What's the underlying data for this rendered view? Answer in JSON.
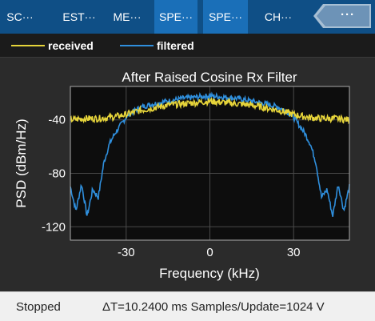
{
  "tabs": [
    {
      "label": "SC···",
      "active": false
    },
    {
      "label": "EST···",
      "active": false
    },
    {
      "label": "ME···",
      "active": false
    },
    {
      "label": "SPE···",
      "active": true
    },
    {
      "label": "SPE···",
      "active": true
    },
    {
      "label": "CH···",
      "active": false
    }
  ],
  "more_tab": {
    "label": "···"
  },
  "colors": {
    "received": "#e6d43a",
    "filtered": "#2f8fdd",
    "axes_bg": "#0d0d0d",
    "grid": "#4a4a4a"
  },
  "legend": {
    "received": "received",
    "filtered": "filtered"
  },
  "chart_data": {
    "type": "line",
    "title": "After Raised Cosine Rx Filter",
    "xlabel": "Frequency (kHz)",
    "ylabel": "PSD (dBm/Hz)",
    "xlim": [
      -50,
      50
    ],
    "ylim": [
      -130,
      -15
    ],
    "xticks": [
      -30,
      0,
      30
    ],
    "yticks": [
      -40,
      -80,
      -120
    ],
    "xtick_labels": [
      "-30",
      "0",
      "30"
    ],
    "ytick_labels": [
      "-40",
      "-80",
      "-120"
    ],
    "grid": true,
    "legend_position": "top",
    "series": [
      {
        "name": "received",
        "x": [
          -50,
          -45,
          -40,
          -35,
          -30,
          -25,
          -20,
          -15,
          -10,
          -5,
          0,
          5,
          10,
          15,
          20,
          25,
          30,
          35,
          40,
          45,
          50
        ],
        "y": [
          -40,
          -39,
          -39,
          -38,
          -36,
          -33,
          -31,
          -29,
          -28,
          -27,
          -26,
          -27,
          -28,
          -29,
          -31,
          -33,
          -36,
          -38,
          -39,
          -39,
          -40
        ]
      },
      {
        "name": "filtered",
        "x": [
          -50,
          -48,
          -46,
          -44,
          -42,
          -40,
          -38,
          -36,
          -34,
          -32,
          -30,
          -27,
          -24,
          -20,
          -15,
          -10,
          -5,
          0,
          5,
          10,
          15,
          20,
          24,
          27,
          30,
          32,
          34,
          36,
          38,
          40,
          42,
          44,
          46,
          48,
          50
        ],
        "y": [
          -90,
          -108,
          -88,
          -112,
          -92,
          -98,
          -72,
          -58,
          -50,
          -44,
          -38,
          -33,
          -30,
          -28,
          -26,
          -24,
          -23,
          -22,
          -23,
          -24,
          -26,
          -28,
          -30,
          -33,
          -38,
          -44,
          -50,
          -58,
          -72,
          -98,
          -92,
          -112,
          -88,
          -108,
          -90
        ]
      }
    ]
  },
  "status": {
    "state": "Stopped",
    "info": "ΔT=10.2400 ms  Samples/Update=1024  V"
  }
}
